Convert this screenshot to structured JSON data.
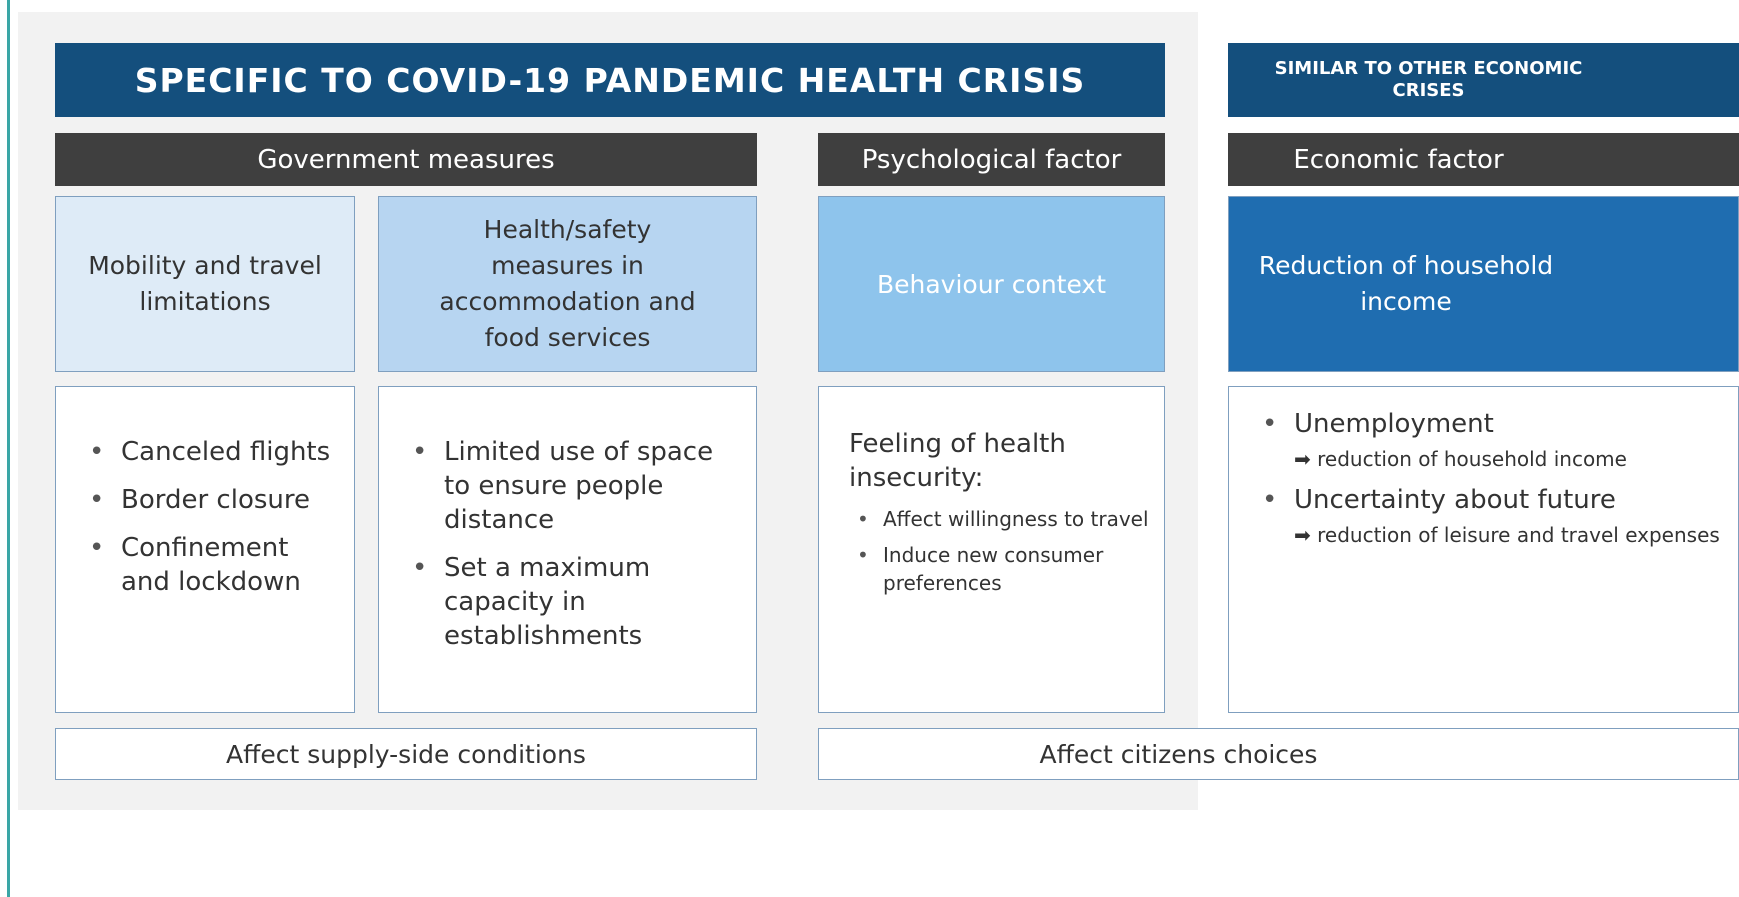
{
  "left_header": "SPECIFIC TO COVID-19 PANDEMIC HEALTH CRISIS",
  "right_header": "SIMILAR TO OTHER ECONOMIC CRISES",
  "groups": [
    "Government measures",
    "Psychological factor",
    "Economic factor"
  ],
  "measures": [
    {
      "title": "Mobility and travel limitations",
      "items": [
        "Canceled flights",
        "Border closure",
        "Confinement and lockdown"
      ]
    },
    {
      "title": "Health/safety measures in accommodation and food services",
      "items": [
        "Limited use of space to ensure people distance",
        "Set a maximum capacity in establishments"
      ]
    }
  ],
  "psychological": {
    "title": "Behaviour context",
    "lead": "Feeling of health insecurity:",
    "items": [
      "Affect willingness to travel",
      "Induce new consumer preferences"
    ]
  },
  "economic": {
    "title": "Reduction of household income",
    "items": [
      {
        "text": "Unemployment",
        "effect": "reduction of household income"
      },
      {
        "text": "Uncertainty about future",
        "effect": "reduction of leisure and travel expenses"
      }
    ]
  },
  "outcomes": [
    "Affect supply-side conditions",
    "Affect citizens choices"
  ]
}
